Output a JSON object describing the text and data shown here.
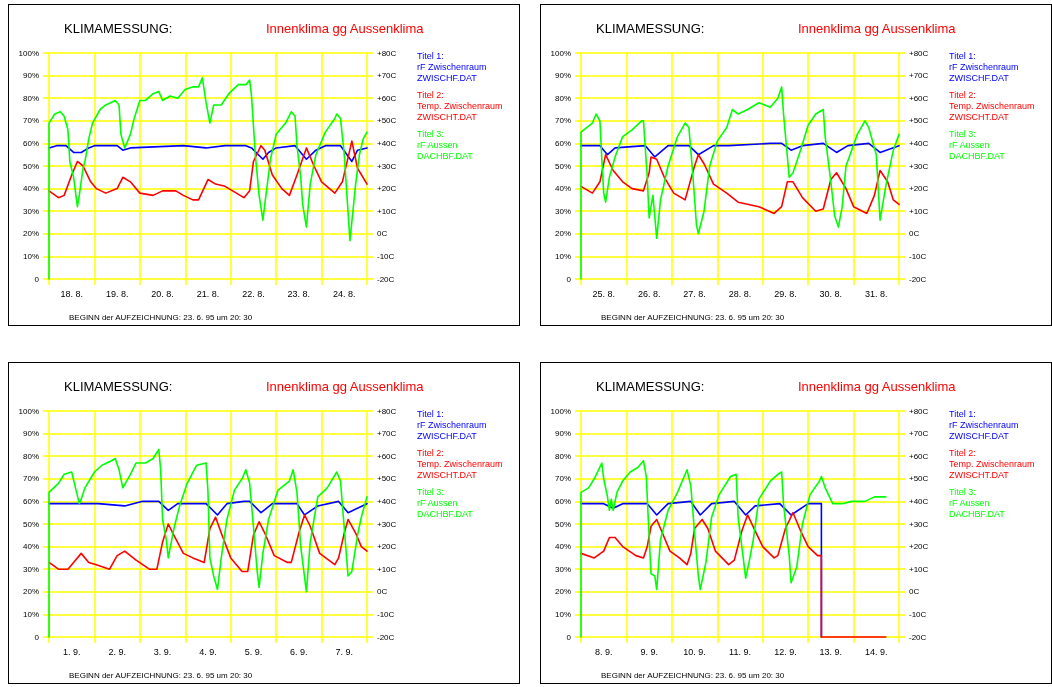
{
  "chart_data": [
    {
      "type": "line",
      "title": "KLIMAMESSUNG:",
      "subtitle": "Innenklima gg Aussenklima",
      "annotations": [
        "BEGINN der AUFZEICHNUNG: 23. 6. 95 um 20: 30"
      ],
      "grid": true,
      "legend": "right",
      "marker": "none",
      "line_style": "solid",
      "xlim": [
        "--08-18T00:00",
        "--08-25T00:00"
      ],
      "xticks": [
        {
          "value": "--08-18T00:00",
          "label": null
        },
        {
          "value": "--08-18T12:00",
          "label": "18. 8."
        },
        {
          "value": "--08-19T00:00",
          "label": null
        },
        {
          "value": "--08-19T12:00",
          "label": "19. 8."
        },
        {
          "value": "--08-20T00:00",
          "label": null
        },
        {
          "value": "--08-20T12:00",
          "label": "20. 8."
        },
        {
          "value": "--08-21T00:00",
          "label": null
        },
        {
          "value": "--08-21T12:00",
          "label": "21. 8."
        },
        {
          "value": "--08-22T00:00",
          "label": null
        },
        {
          "value": "--08-22T12:00",
          "label": "22. 8."
        },
        {
          "value": "--08-23T00:00",
          "label": null
        },
        {
          "value": "--08-23T12:00",
          "label": "23. 8."
        },
        {
          "value": "--08-24T00:00",
          "label": null
        },
        {
          "value": "--08-24T12:00",
          "label": "24. 8."
        },
        {
          "value": "--08-25T00:00",
          "label": null
        }
      ],
      "ylim": [
        0,
        100
      ],
      "yticks": [
        {
          "value": 0,
          "label": "0"
        },
        {
          "value": 10,
          "label": "10%"
        },
        {
          "value": 20,
          "label": "20%"
        },
        {
          "value": 30,
          "label": "30%"
        },
        {
          "value": 40,
          "label": "40%"
        },
        {
          "value": 50,
          "label": "50%"
        },
        {
          "value": 60,
          "label": "60%"
        },
        {
          "value": 70,
          "label": "70%"
        },
        {
          "value": 80,
          "label": "80%"
        },
        {
          "value": 90,
          "label": "90%"
        },
        {
          "value": 100,
          "label": "100%"
        }
      ],
      "y2lim": [
        -20,
        80
      ],
      "y2ticks": [
        {
          "value": -20,
          "label": "-20C"
        },
        {
          "value": -10,
          "label": "-10C"
        },
        {
          "value": 0,
          "label": "0C"
        },
        {
          "value": 10,
          "label": "+10C"
        },
        {
          "value": 20,
          "label": "+20C"
        },
        {
          "value": 30,
          "label": "+30C"
        },
        {
          "value": 40,
          "label": "+40C"
        },
        {
          "value": 50,
          "label": "+50C"
        },
        {
          "value": 60,
          "label": "+60C"
        },
        {
          "value": 70,
          "label": "+70C"
        },
        {
          "value": 80,
          "label": "+80C"
        }
      ],
      "series": [
        {
          "name": "Titel 1:\nrF Zwischenraum\nZWISCHF.DAT",
          "color": "#0000ff",
          "x": [
            "--08-18T00:00",
            "--08-18T04:00",
            "--08-18T09:00",
            "--08-18T13:00",
            "--08-18T17:00",
            "--08-18T21:00",
            "--08-19T00:00",
            "--08-19T12:00",
            "--08-19T15:00",
            "--08-19T19:00",
            "--08-20T23:00",
            "--08-21T11:00",
            "--08-21T21:00",
            "--08-22T08:00",
            "--08-22T11:00",
            "--08-22T17:00",
            "--08-22T20:00",
            "--08-23T00:00",
            "--08-23T10:00",
            "--08-23T16:00",
            "--08-23T21:00",
            "--08-24T02:00",
            "--08-24T10:00",
            "--08-24T16:00",
            "--08-24T19:00",
            "--08-25T00:00"
          ],
          "values": [
            58,
            59,
            59,
            56,
            56,
            58,
            59,
            59,
            57,
            58,
            59,
            58,
            59,
            59,
            58,
            53,
            56,
            58,
            59,
            53,
            57,
            59,
            59,
            52,
            57,
            58
          ]
        },
        {
          "name": "Titel 2:\nTemp. Zwischenraum\nZWISCHT.DAT",
          "color": "#ff0000",
          "axis": "y2",
          "x": [
            "--08-18T00:00",
            "--08-18T05:00",
            "--08-18T08:00",
            "--08-18T12:00",
            "--08-18T15:00",
            "--08-18T18:00",
            "--08-18T22:00",
            "--08-19T01:00",
            "--08-19T06:00",
            "--08-19T12:00",
            "--08-19T15:00",
            "--08-19T19:00",
            "--08-20T00:00",
            "--08-20T07:00",
            "--08-20T12:00",
            "--08-20T19:00",
            "--08-20T23:00",
            "--08-21T04:00",
            "--08-21T07:00",
            "--08-21T12:00",
            "--08-21T16:00",
            "--08-21T21:00",
            "--08-22T03:00",
            "--08-22T07:00",
            "--08-22T10:00",
            "--08-22T12:00",
            "--08-22T16:00",
            "--08-22T18:00",
            "--08-22T22:00",
            "--08-23T03:00",
            "--08-23T07:00",
            "--08-23T11:00",
            "--08-23T16:00",
            "--08-23T20:00",
            "--08-24T00:00",
            "--08-24T07:00",
            "--08-24T11:00",
            "--08-24T16:00",
            "--08-24T19:00",
            "--08-25T00:00"
          ],
          "values": [
            19,
            16,
            17,
            26,
            32,
            30,
            23,
            20,
            18,
            20,
            25,
            23,
            18,
            17,
            19,
            19,
            17,
            15,
            15,
            24,
            22,
            21,
            18,
            16,
            19,
            32,
            39,
            37,
            26,
            20,
            17,
            26,
            38,
            30,
            23,
            18,
            23,
            41,
            29,
            22
          ]
        },
        {
          "name": "Titel 3:\nrF Aussen\nDACHBF.DAT",
          "color": "#00ff00",
          "x": [
            "--08-18T00:00",
            "--08-18T00:00",
            "--08-18T03:00",
            "--08-18T06:00",
            "--08-18T08:00",
            "--08-18T10:00",
            "--08-18T11:00",
            "--08-18T13:00",
            "--08-18T15:00",
            "--08-18T16:00",
            "--08-18T18:00",
            "--08-18T19:00",
            "--08-18T21:00",
            "--08-18T23:00",
            "--08-19T03:00",
            "--08-19T06:00",
            "--08-19T11:00",
            "--08-19T13:00",
            "--08-19T14:00",
            "--08-19T16:00",
            "--08-19T19:00",
            "--08-19T21:00",
            "--08-20T00:00",
            "--08-20T03:00",
            "--08-20T07:00",
            "--08-20T10:00",
            "--08-20T12:00",
            "--08-20T16:00",
            "--08-20T20:00",
            "--08-21T00:00",
            "--08-21T04:00",
            "--08-21T07:00",
            "--08-21T09:00",
            "--08-21T11:00",
            "--08-21T13:00",
            "--08-21T15:00",
            "--08-21T19:00",
            "--08-21T23:00",
            "--08-22T04:00",
            "--08-22T08:00",
            "--08-22T10:00",
            "--08-22T11:00",
            "--08-22T13:00",
            "--08-22T15:00",
            "--08-22T17:00",
            "--08-22T18:00",
            "--08-22T21:00",
            "--08-23T00:00",
            "--08-23T05:00",
            "--08-23T08:00",
            "--08-23T10:00",
            "--08-23T11:00",
            "--08-23T13:00",
            "--08-23T14:00",
            "--08-23T16:00",
            "--08-23T18:00",
            "--08-23T21:00",
            "--08-24T02:00",
            "--08-24T07:00",
            "--08-24T08:00",
            "--08-24T10:00",
            "--08-24T12:00",
            "--08-24T13:00",
            "--08-24T15:00",
            "--08-24T18:00",
            "--08-24T20:00",
            "--08-24T22:00",
            "--08-25T00:00"
          ],
          "values": [
            0,
            69,
            73,
            74,
            72,
            66,
            52,
            45,
            32,
            37,
            49,
            52,
            62,
            69,
            75,
            77,
            79,
            77,
            64,
            58,
            64,
            71,
            79,
            79,
            82,
            83,
            79,
            81,
            80,
            84,
            85,
            85,
            89,
            78,
            69,
            77,
            77,
            82,
            86,
            86,
            88,
            81,
            55,
            37,
            26,
            33,
            53,
            64,
            69,
            74,
            72,
            59,
            45,
            33,
            23,
            42,
            55,
            65,
            71,
            73,
            71,
            55,
            42,
            17,
            42,
            55,
            62,
            65
          ]
        }
      ]
    },
    {
      "type": "line",
      "title": "KLIMAMESSUNG:",
      "subtitle": "Innenklima gg Aussenklima",
      "annotations": [
        "BEGINN der AUFZEICHNUNG: 23. 6. 95 um 20: 30"
      ],
      "grid": true,
      "legend": "right",
      "marker": "none",
      "line_style": "solid",
      "xlim": [
        "--08-25T00:00",
        "--09-01T00:00"
      ],
      "xticks": [
        {
          "value": "--08-25T00:00",
          "label": null
        },
        {
          "value": "--08-25T12:00",
          "label": "25. 8."
        },
        {
          "value": "--08-26T00:00",
          "label": null
        },
        {
          "value": "--08-26T12:00",
          "label": "26. 8."
        },
        {
          "value": "--08-27T00:00",
          "label": null
        },
        {
          "value": "--08-27T12:00",
          "label": "27. 8."
        },
        {
          "value": "--08-28T00:00",
          "label": null
        },
        {
          "value": "--08-28T12:00",
          "label": "28. 8."
        },
        {
          "value": "--08-29T00:00",
          "label": null
        },
        {
          "value": "--08-29T12:00",
          "label": "29. 8."
        },
        {
          "value": "--08-30T00:00",
          "label": null
        },
        {
          "value": "--08-30T12:00",
          "label": "30. 8."
        },
        {
          "value": "--08-31T00:00",
          "label": null
        },
        {
          "value": "--08-31T12:00",
          "label": "31. 8."
        },
        {
          "value": "--09-01T00:00",
          "label": null
        }
      ],
      "ylim": [
        0,
        100
      ],
      "yticks": [
        {
          "value": 0,
          "label": "0"
        },
        {
          "value": 10,
          "label": "10%"
        },
        {
          "value": 20,
          "label": "20%"
        },
        {
          "value": 30,
          "label": "30%"
        },
        {
          "value": 40,
          "label": "40%"
        },
        {
          "value": 50,
          "label": "50%"
        },
        {
          "value": 60,
          "label": "60%"
        },
        {
          "value": 70,
          "label": "70%"
        },
        {
          "value": 80,
          "label": "80%"
        },
        {
          "value": 90,
          "label": "90%"
        },
        {
          "value": 100,
          "label": "100%"
        }
      ],
      "y2lim": [
        -20,
        80
      ],
      "y2ticks": [
        {
          "value": -20,
          "label": "-20C"
        },
        {
          "value": -10,
          "label": "-10C"
        },
        {
          "value": 0,
          "label": "0C"
        },
        {
          "value": 10,
          "label": "+10C"
        },
        {
          "value": 20,
          "label": "+20C"
        },
        {
          "value": 30,
          "label": "+30C"
        },
        {
          "value": 40,
          "label": "+40C"
        },
        {
          "value": 50,
          "label": "+50C"
        },
        {
          "value": 60,
          "label": "+60C"
        },
        {
          "value": 70,
          "label": "+70C"
        },
        {
          "value": 80,
          "label": "+80C"
        }
      ],
      "series": [
        {
          "name": "Titel 1:\nrF Zwischenraum\nZWISCHF.DAT",
          "color": "#0000ff",
          "x": [
            "--08-25T00:00",
            "--08-25T10:00",
            "--08-25T14:00",
            "--08-25T18:00",
            "--08-26T10:00",
            "--08-26T15:00",
            "--08-26T22:00",
            "--08-27T09:00",
            "--08-27T14:00",
            "--08-27T22:00",
            "--08-28T06:00",
            "--08-29T04:00",
            "--08-29T10:00",
            "--08-29T15:00",
            "--08-29T21:00",
            "--08-30T08:00",
            "--08-30T15:00",
            "--08-30T21:00",
            "--08-31T08:00",
            "--08-31T14:00",
            "--09-01T00:00"
          ],
          "values": [
            59,
            59,
            55,
            58,
            59,
            54,
            59,
            59,
            55,
            59,
            59,
            60,
            60,
            57,
            59,
            60,
            56,
            59,
            60,
            56,
            59
          ]
        },
        {
          "name": "Titel 2:\nTemp. Zwischenraum\nZWISCHT.DAT",
          "color": "#ff0000",
          "axis": "y2",
          "x": [
            "--08-25T00:00",
            "--08-25T06:00",
            "--08-25T10:00",
            "--08-25T13:00",
            "--08-25T17:00",
            "--08-25T22:00",
            "--08-26T03:00",
            "--08-26T09:00",
            "--08-26T12:00",
            "--08-26T13:00",
            "--08-26T16:00",
            "--08-26T20:00",
            "--08-27T01:00",
            "--08-27T07:00",
            "--08-27T12:00",
            "--08-27T14:00",
            "--08-27T17:00",
            "--08-27T22:00",
            "--08-28T05:00",
            "--08-28T11:00",
            "--08-28T22:00",
            "--08-29T06:00",
            "--08-29T10:00",
            "--08-29T13:00",
            "--08-29T16:00",
            "--08-29T21:00",
            "--08-30T04:00",
            "--08-30T08:00",
            "--08-30T12:00",
            "--08-30T15:00",
            "--08-30T20:00",
            "--08-31T00:00",
            "--08-31T07:00",
            "--08-31T11:00",
            "--08-31T14:00",
            "--08-31T18:00",
            "--08-31T21:00",
            "--09-01T00:00"
          ],
          "values": [
            21,
            18,
            23,
            35,
            28,
            23,
            20,
            19,
            27,
            34,
            33,
            25,
            18,
            15,
            30,
            35,
            31,
            22,
            18,
            14,
            12,
            9,
            12,
            23,
            23,
            16,
            10,
            11,
            24,
            27,
            20,
            12,
            9,
            17,
            28,
            23,
            15,
            13
          ]
        },
        {
          "name": "Titel 3:\nrF Aussen\nDACHBF.DAT",
          "color": "#00ff00",
          "x": [
            "--08-25T00:00",
            "--08-25T00:00",
            "--08-25T03:00",
            "--08-25T06:00",
            "--08-25T08:00",
            "--08-25T10:00",
            "--08-25T11:00",
            "--08-25T12:00",
            "--08-25T13:00",
            "--08-25T15:00",
            "--08-25T18:00",
            "--08-25T22:00",
            "--08-26T03:00",
            "--08-26T08:00",
            "--08-26T09:00",
            "--08-26T11:00",
            "--08-26T12:00",
            "--08-26T14:00",
            "--08-26T16:00",
            "--08-26T18:00",
            "--08-26T22:00",
            "--08-27T03:00",
            "--08-27T07:00",
            "--08-27T09:00",
            "--08-27T11:00",
            "--08-27T13:00",
            "--08-27T14:00",
            "--08-27T17:00",
            "--08-27T20:00",
            "--08-28T00:00",
            "--08-28T05:00",
            "--08-28T08:00",
            "--08-28T11:00",
            "--08-28T16:00",
            "--08-28T22:00",
            "--08-29T04:00",
            "--08-29T08:00",
            "--08-29T10:00",
            "--08-29T11:00",
            "--08-29T14:00",
            "--08-29T16:00",
            "--08-29T20:00",
            "--08-30T00:00",
            "--08-30T04:00",
            "--08-30T08:00",
            "--08-30T09:00",
            "--08-30T12:00",
            "--08-30T14:00",
            "--08-30T16:00",
            "--08-30T18:00",
            "--08-30T20:00",
            "--08-31T02:00",
            "--08-31T06:00",
            "--08-31T08:00",
            "--08-31T12:00",
            "--08-31T14:00",
            "--08-31T17:00",
            "--08-31T21:00",
            "--09-01T00:00"
          ],
          "values": [
            0,
            65,
            67,
            69,
            73,
            70,
            53,
            38,
            34,
            45,
            54,
            63,
            66,
            70,
            70,
            45,
            27,
            37,
            18,
            35,
            50,
            63,
            69,
            67,
            47,
            24,
            20,
            30,
            50,
            61,
            67,
            75,
            73,
            75,
            78,
            76,
            80,
            85,
            73,
            45,
            47,
            57,
            68,
            73,
            75,
            63,
            43,
            28,
            23,
            32,
            50,
            64,
            70,
            67,
            55,
            26,
            41,
            57,
            64
          ]
        }
      ]
    },
    {
      "type": "line",
      "title": "KLIMAMESSUNG:",
      "subtitle": "Innenklima gg Aussenklima",
      "annotations": [
        "BEGINN der AUFZEICHNUNG: 23. 6. 95 um 20: 30"
      ],
      "grid": true,
      "legend": "right",
      "marker": "none",
      "line_style": "solid",
      "xlim": [
        "--09-01T00:00",
        "--09-08T00:00"
      ],
      "xticks": [
        {
          "value": "--09-01T00:00",
          "label": null
        },
        {
          "value": "--09-01T12:00",
          "label": "1. 9."
        },
        {
          "value": "--09-02T00:00",
          "label": null
        },
        {
          "value": "--09-02T12:00",
          "label": "2. 9."
        },
        {
          "value": "--09-03T00:00",
          "label": null
        },
        {
          "value": "--09-03T12:00",
          "label": "3. 9."
        },
        {
          "value": "--09-04T00:00",
          "label": null
        },
        {
          "value": "--09-04T12:00",
          "label": "4. 9."
        },
        {
          "value": "--09-05T00:00",
          "label": null
        },
        {
          "value": "--09-05T12:00",
          "label": "5. 9."
        },
        {
          "value": "--09-06T00:00",
          "label": null
        },
        {
          "value": "--09-06T12:00",
          "label": "6. 9."
        },
        {
          "value": "--09-07T00:00",
          "label": null
        },
        {
          "value": "--09-07T12:00",
          "label": "7. 9."
        },
        {
          "value": "--09-08T00:00",
          "label": null
        }
      ],
      "ylim": [
        0,
        100
      ],
      "yticks": [
        {
          "value": 0,
          "label": "0"
        },
        {
          "value": 10,
          "label": "10%"
        },
        {
          "value": 20,
          "label": "20%"
        },
        {
          "value": 30,
          "label": "30%"
        },
        {
          "value": 40,
          "label": "40%"
        },
        {
          "value": 50,
          "label": "50%"
        },
        {
          "value": 60,
          "label": "60%"
        },
        {
          "value": 70,
          "label": "70%"
        },
        {
          "value": 80,
          "label": "80%"
        },
        {
          "value": 90,
          "label": "90%"
        },
        {
          "value": 100,
          "label": "100%"
        }
      ],
      "y2lim": [
        -20,
        80
      ],
      "y2ticks": [
        {
          "value": -20,
          "label": "-20C"
        },
        {
          "value": -10,
          "label": "-10C"
        },
        {
          "value": 0,
          "label": "0C"
        },
        {
          "value": 10,
          "label": "+10C"
        },
        {
          "value": 20,
          "label": "+20C"
        },
        {
          "value": 30,
          "label": "+30C"
        },
        {
          "value": 40,
          "label": "+40C"
        },
        {
          "value": 50,
          "label": "+50C"
        },
        {
          "value": 60,
          "label": "+60C"
        },
        {
          "value": 70,
          "label": "+70C"
        },
        {
          "value": 80,
          "label": "+80C"
        }
      ],
      "series": [
        {
          "name": "Titel 1:\nrF Zwischenraum\nZWISCHF.DAT",
          "color": "#0000ff",
          "x": [
            "--09-01T00:00",
            "--09-01T14:00",
            "--09-02T02:00",
            "--09-02T16:00",
            "--09-03T01:00",
            "--09-03T10:00",
            "--09-03T15:00",
            "--09-03T20:00",
            "--09-04T11:00",
            "--09-04T17:00",
            "--09-04T22:00",
            "--09-05T07:00",
            "--09-05T10:00",
            "--09-05T16:00",
            "--09-05T22:00",
            "--09-06T11:00",
            "--09-06T15:00",
            "--09-06T22:00",
            "--09-07T09:00",
            "--09-07T14:00",
            "--09-08T00:00"
          ],
          "values": [
            59,
            59,
            59,
            58,
            60,
            60,
            56,
            59,
            59,
            54,
            59,
            60,
            60,
            55,
            59,
            59,
            54,
            58,
            60,
            55,
            59
          ]
        },
        {
          "name": "Titel 2:\nTemp. Zwischenraum\nZWISCHT.DAT",
          "color": "#ff0000",
          "axis": "y2",
          "x": [
            "--09-01T00:00",
            "--09-01T05:00",
            "--09-01T10:00",
            "--09-01T13:00",
            "--09-01T17:00",
            "--09-01T21:00",
            "--09-02T01:00",
            "--09-02T08:00",
            "--09-02T12:00",
            "--09-02T16:00",
            "--09-02T22:00",
            "--09-03T05:00",
            "--09-03T09:00",
            "--09-03T12:00",
            "--09-03T15:00",
            "--09-03T18:00",
            "--09-03T23:00",
            "--09-04T04:00",
            "--09-04T10:00",
            "--09-04T13:00",
            "--09-04T16:00",
            "--09-04T19:00",
            "--09-05T00:00",
            "--09-05T06:00",
            "--09-05T09:00",
            "--09-05T12:00",
            "--09-05T15:00",
            "--09-05T18:00",
            "--09-05T23:00",
            "--09-06T06:00",
            "--09-06T08:00",
            "--09-06T12:00",
            "--09-06T15:00",
            "--09-06T18:00",
            "--09-06T23:00",
            "--09-07T07:00",
            "--09-07T09:00",
            "--09-07T12:00",
            "--09-07T14:00",
            "--09-07T18:00",
            "--09-07T21:00",
            "--09-08T00:00"
          ],
          "values": [
            13,
            10,
            10,
            13,
            17,
            13,
            12,
            10,
            16,
            18,
            14,
            10,
            10,
            22,
            30,
            25,
            17,
            15,
            13,
            28,
            33,
            26,
            15,
            9,
            9,
            25,
            31,
            26,
            16,
            13,
            13,
            26,
            34,
            29,
            17,
            12,
            15,
            26,
            32,
            26,
            20,
            18
          ]
        },
        {
          "name": "Titel 3:\nrF Aussen\nDACHBF.DAT",
          "color": "#00ff00",
          "x": [
            "--09-01T00:00",
            "--09-01T00:00",
            "--09-01T05:00",
            "--09-01T08:00",
            "--09-01T12:00",
            "--09-01T14:00",
            "--09-01T16:00",
            "--09-01T17:00",
            "--09-01T19:00",
            "--09-02T00:00",
            "--09-02T04:00",
            "--09-02T09:00",
            "--09-02T11:00",
            "--09-02T13:00",
            "--09-02T15:00",
            "--09-02T19:00",
            "--09-02T22:00",
            "--09-03T03:00",
            "--09-03T07:00",
            "--09-03T10:00",
            "--09-03T11:00",
            "--09-03T12:00",
            "--09-03T14:00",
            "--09-03T15:00",
            "--09-03T18:00",
            "--09-03T21:00",
            "--09-04T01:00",
            "--09-04T06:00",
            "--09-04T11:00",
            "--09-04T12:00",
            "--09-04T13:00",
            "--09-04T15:00",
            "--09-04T17:00",
            "--09-04T19:00",
            "--09-04T22:00",
            "--09-05T02:00",
            "--09-05T06:00",
            "--09-05T08:00",
            "--09-05T10:00",
            "--09-05T12:00",
            "--09-05T14:00",
            "--09-05T15:00",
            "--09-05T17:00",
            "--09-05T20:00",
            "--09-06T01:00",
            "--09-06T07:00",
            "--09-06T09:00",
            "--09-06T11:00",
            "--09-06T13:00",
            "--09-06T16:00",
            "--09-06T18:00",
            "--09-06T22:00",
            "--09-07T03:00",
            "--09-07T08:00",
            "--09-07T10:00",
            "--09-07T12:00",
            "--09-07T14:00",
            "--09-07T16:00",
            "--09-07T19:00",
            "--09-07T21:00",
            "--09-08T00:00"
          ],
          "values": [
            0,
            64,
            68,
            72,
            73,
            66,
            59,
            61,
            66,
            73,
            76,
            78,
            79,
            74,
            66,
            72,
            77,
            77,
            79,
            83,
            74,
            52,
            43,
            35,
            48,
            58,
            68,
            76,
            77,
            64,
            35,
            27,
            21,
            35,
            52,
            65,
            70,
            74,
            68,
            49,
            29,
            22,
            37,
            52,
            65,
            69,
            74,
            64,
            40,
            20,
            42,
            62,
            66,
            73,
            69,
            48,
            27,
            29,
            45,
            53,
            62
          ]
        }
      ]
    },
    {
      "type": "line",
      "title": "KLIMAMESSUNG:",
      "subtitle": "Innenklima gg Aussenklima",
      "annotations": [
        "BEGINN der AUFZEICHNUNG: 23. 6. 95 um 20: 30"
      ],
      "grid": true,
      "legend": "right",
      "marker": "none",
      "line_style": "solid",
      "xlim": [
        "--09-08T00:00",
        "--09-15T00:00"
      ],
      "xticks": [
        {
          "value": "--09-08T00:00",
          "label": null
        },
        {
          "value": "--09-08T12:00",
          "label": "8. 9."
        },
        {
          "value": "--09-09T00:00",
          "label": null
        },
        {
          "value": "--09-09T12:00",
          "label": "9. 9."
        },
        {
          "value": "--09-10T00:00",
          "label": null
        },
        {
          "value": "--09-10T12:00",
          "label": "10. 9."
        },
        {
          "value": "--09-11T00:00",
          "label": null
        },
        {
          "value": "--09-11T12:00",
          "label": "11. 9."
        },
        {
          "value": "--09-12T00:00",
          "label": null
        },
        {
          "value": "--09-12T12:00",
          "label": "12. 9."
        },
        {
          "value": "--09-13T00:00",
          "label": null
        },
        {
          "value": "--09-13T12:00",
          "label": "13. 9."
        },
        {
          "value": "--09-14T00:00",
          "label": null
        },
        {
          "value": "--09-14T12:00",
          "label": "14. 9."
        },
        {
          "value": "--09-15T00:00",
          "label": null
        }
      ],
      "ylim": [
        0,
        100
      ],
      "yticks": [
        {
          "value": 0,
          "label": "0"
        },
        {
          "value": 10,
          "label": "10%"
        },
        {
          "value": 20,
          "label": "20%"
        },
        {
          "value": 30,
          "label": "30%"
        },
        {
          "value": 40,
          "label": "40%"
        },
        {
          "value": 50,
          "label": "50%"
        },
        {
          "value": 60,
          "label": "60%"
        },
        {
          "value": 70,
          "label": "70%"
        },
        {
          "value": 80,
          "label": "80%"
        },
        {
          "value": 90,
          "label": "90%"
        },
        {
          "value": 100,
          "label": "100%"
        }
      ],
      "y2lim": [
        -20,
        80
      ],
      "y2ticks": [
        {
          "value": -20,
          "label": "-20C"
        },
        {
          "value": -10,
          "label": "-10C"
        },
        {
          "value": 0,
          "label": "0C"
        },
        {
          "value": 10,
          "label": "+10C"
        },
        {
          "value": 20,
          "label": "+20C"
        },
        {
          "value": 30,
          "label": "+30C"
        },
        {
          "value": 40,
          "label": "+40C"
        },
        {
          "value": 50,
          "label": "+50C"
        },
        {
          "value": 60,
          "label": "+60C"
        },
        {
          "value": 70,
          "label": "+70C"
        },
        {
          "value": 80,
          "label": "+80C"
        }
      ],
      "series": [
        {
          "name": "Titel 1:\nrF Zwischenraum\nZWISCHF.DAT",
          "color": "#0000ff",
          "x": [
            "--09-08T00:00",
            "--09-08T12:00",
            "--09-08T17:00",
            "--09-08T22:00",
            "--09-09T11:00",
            "--09-09T16:00",
            "--09-09T22:00",
            "--09-10T10:00",
            "--09-10T15:00",
            "--09-10T21:00",
            "--09-11T09:00",
            "--09-11T15:00",
            "--09-11T20:00",
            "--09-12T09:00",
            "--09-12T15:00",
            "--09-13T00:00",
            "--09-13T07:00",
            "--09-13T07:00"
          ],
          "values": [
            59,
            59,
            57,
            59,
            59,
            54,
            59,
            60,
            54,
            59,
            60,
            54,
            58,
            59,
            54,
            59,
            59,
            0
          ]
        },
        {
          "name": "Titel 2:\nTemp. Zwischenraum\nZWISCHT.DAT",
          "color": "#ff0000",
          "axis": "y2",
          "x": [
            "--09-08T00:00",
            "--09-08T07:00",
            "--09-08T12:00",
            "--09-08T15:00",
            "--09-08T18:00",
            "--09-08T22:00",
            "--09-09T05:00",
            "--09-09T09:00",
            "--09-09T11:00",
            "--09-09T13:00",
            "--09-09T16:00",
            "--09-09T19:00",
            "--09-09T23:00",
            "--09-10T04:00",
            "--09-10T08:00",
            "--09-10T10:00",
            "--09-10T12:00",
            "--09-10T16:00",
            "--09-10T19:00",
            "--09-10T23:00",
            "--09-11T06:00",
            "--09-11T09:00",
            "--09-11T13:00",
            "--09-11T16:00",
            "--09-11T20:00",
            "--09-12T00:00",
            "--09-12T06:00",
            "--09-12T08:00",
            "--09-12T12:00",
            "--09-12T16:00",
            "--09-12T20:00",
            "--09-13T00:00",
            "--09-13T05:00",
            "--09-13T07:00",
            "--09-13T07:00",
            "--09-14T17:00"
          ],
          "values": [
            17,
            15,
            18,
            24,
            24,
            20,
            16,
            15,
            20,
            29,
            32,
            26,
            18,
            15,
            12,
            17,
            28,
            32,
            28,
            18,
            12,
            14,
            27,
            34,
            27,
            20,
            15,
            16,
            28,
            35,
            27,
            20,
            16,
            16,
            -20,
            -20
          ]
        },
        {
          "name": "Titel 3:\nrF Aussen\nDACHBF.DAT",
          "color": "#00ff00",
          "x": [
            "--09-08T00:00",
            "--09-08T00:00",
            "--09-08T04:00",
            "--09-08T07:00",
            "--09-08T11:00",
            "--09-08T12:00",
            "--09-08T14:00",
            "--09-08T15:00",
            "--09-08T16:00",
            "--09-08T17:00",
            "--09-08T19:00",
            "--09-08T22:00",
            "--09-09T02:00",
            "--09-09T06:00",
            "--09-09T09:00",
            "--09-09T10:30",
            "--09-09T11:30",
            "--09-09T13:00",
            "--09-09T15:00",
            "--09-09T16:00",
            "--09-09T18:00",
            "--09-09T22:00",
            "--09-10T03:00",
            "--09-10T08:00",
            "--09-10T10:00",
            "--09-10T12:00",
            "--09-10T14:00",
            "--09-10T15:00",
            "--09-10T18:00",
            "--09-10T21:00",
            "--09-11T01:00",
            "--09-11T07:00",
            "--09-11T10:00",
            "--09-11T11:00",
            "--09-11T14:00",
            "--09-11T15:00",
            "--09-11T17:00",
            "--09-11T19:00",
            "--09-11T22:00",
            "--09-12T04:00",
            "--09-12T08:00",
            "--09-12T10:00",
            "--09-12T11:00",
            "--09-12T14:00",
            "--09-12T15:00",
            "--09-12T18:00",
            "--09-12T21:00",
            "--09-13T01:00",
            "--09-13T06:00",
            "--09-13T07:00",
            "--09-13T09:00",
            "--09-13T13:00",
            "--09-13T18:00",
            "--09-13T23:00",
            "--09-14T06:00",
            "--09-14T11:00",
            "--09-14T17:00"
          ],
          "values": [
            0,
            64,
            66,
            70,
            77,
            70,
            62,
            56,
            61,
            56,
            64,
            69,
            73,
            75,
            78,
            71,
            53,
            28,
            27,
            21,
            43,
            56,
            64,
            74,
            67,
            46,
            27,
            21,
            33,
            53,
            63,
            71,
            72,
            53,
            33,
            26,
            34,
            43,
            61,
            69,
            72,
            73,
            59,
            36,
            24,
            31,
            50,
            63,
            69,
            71,
            66,
            59,
            59,
            60,
            60,
            62,
            62
          ]
        }
      ]
    }
  ]
}
